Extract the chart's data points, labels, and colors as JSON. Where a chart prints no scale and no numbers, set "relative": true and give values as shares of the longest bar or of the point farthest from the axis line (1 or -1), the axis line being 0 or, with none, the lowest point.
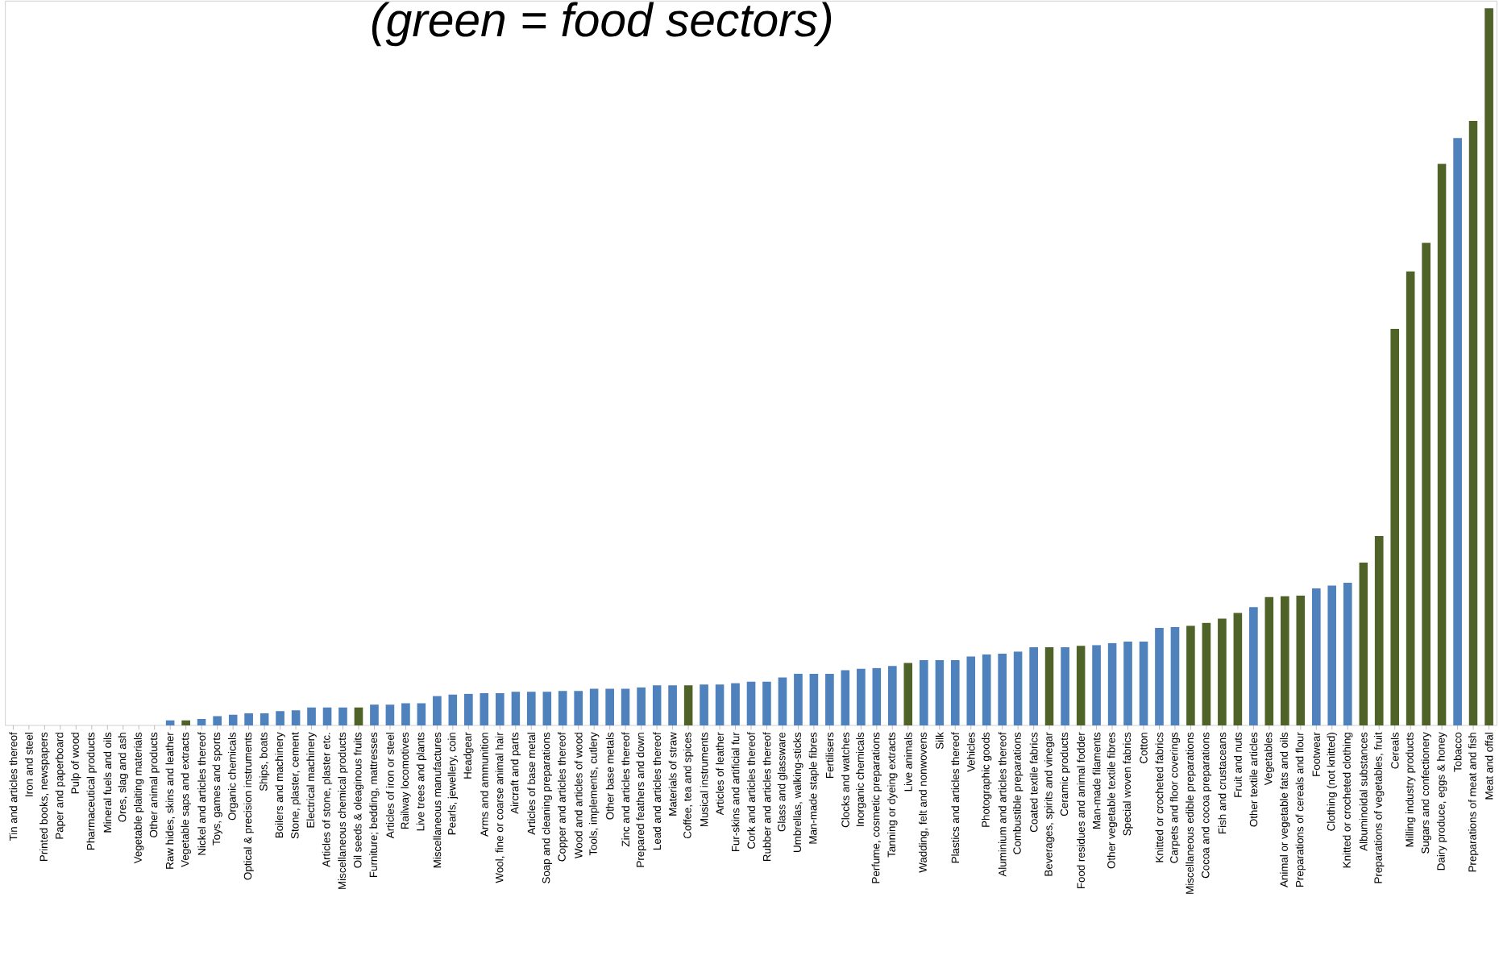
{
  "chart_data": {
    "type": "bar",
    "relative": true,
    "title": "*(green = food sectors)*",
    "categories": [
      "Tin and articles thereof",
      "Iron and steel",
      "Printed books, newspapers",
      "Paper and paperboard",
      "Pulp of wood",
      "Pharmaceutical products",
      "Mineral fuels and oils",
      "Ores, slag and ash",
      "Vegetable plaiting materials",
      "Other animal products",
      "Raw hides, skins and leather",
      "Vegetable saps and extracts",
      "Nickel and articles thereof",
      "Toys, games and sports",
      "Organic chemicals",
      "Optical & precision instruments",
      "Ships, boats",
      "Boilers and machinery",
      "Stone, plaster, cement",
      "Electrical machinery",
      "Articles of stone, plaster etc.",
      "Miscellaneous chemical products",
      "Oil seeds & oleaginous fruits",
      "Furniture; bedding, mattresses",
      "Articles of iron or steel",
      "Railway locomotives",
      "Live trees and plants",
      "Miscellaneous manufactures",
      "Pearls, jewellery, coin",
      "Headgear",
      "Arms and ammunition",
      "Wool, fine or coarse animal hair",
      "Aircraft and parts",
      "Articles of base metal",
      "Soap and cleaning preparations",
      "Copper and articles thereof",
      "Wood and articles of wood",
      "Tools, implements, cutlery",
      "Other base metals",
      "Zinc and articles thereof",
      "Prepared feathers and down",
      "Lead and articles thereof",
      "Materials of straw",
      "Coffee, tea and spices",
      "Musical instruments",
      "Articles of leather",
      "Fur-skins and artificial fur",
      "Cork and articles thereof",
      "Rubber and articles thereof",
      "Glass and glassware",
      "Umbrellas, walking-sticks",
      "Man-made staple fibres",
      "Fertilisers",
      "Clocks and watches",
      "Inorganic chemicals",
      "Perfume, cosmetic preparations",
      "Tanning or dyeing extracts",
      "Live animals",
      "Wadding, felt and nonwovens",
      "Silk",
      "Plastics and articles thereof",
      "Vehicles",
      "Photographic goods",
      "Aluminium and articles thereof",
      "Combustible preparations",
      "Coated textile fabrics",
      "Beverages, spirits and vinegar",
      "Ceramic products",
      "Food residues and animal fodder",
      "Man-made filaments",
      "Other vegetable textile fibres",
      "Special woven fabrics",
      "Cotton",
      "Knitted or crocheted fabrics",
      "Carpets and floor coverings",
      "Miscellaneous edible preparations",
      "Cocoa and cocoa preparations",
      "Fish and crustaceans",
      "Fruit and nuts",
      "Other textile articles",
      "Vegetables",
      "Animal or vegetable fats and oils",
      "Preparations of cereals and flour",
      "Footwear",
      "Clothing (not knitted)",
      "Knitted or crocheted clothing",
      "Albuminoidal substances",
      "Preparations of vegetables, fruit",
      "Cereals",
      "Milling industry products",
      "Sugars and confectionery",
      "Dairy produce, eggs & honey",
      "Tobacco",
      "Preparations of meat and fish",
      "Meat and offal"
    ],
    "values": [
      0,
      0,
      0,
      0,
      0,
      0,
      0,
      0,
      0,
      0,
      0.007,
      0.007,
      0.009,
      0.013,
      0.015,
      0.017,
      0.017,
      0.02,
      0.021,
      0.025,
      0.025,
      0.025,
      0.025,
      0.029,
      0.029,
      0.031,
      0.031,
      0.041,
      0.043,
      0.044,
      0.045,
      0.045,
      0.047,
      0.047,
      0.047,
      0.048,
      0.048,
      0.051,
      0.051,
      0.051,
      0.053,
      0.056,
      0.056,
      0.056,
      0.057,
      0.057,
      0.059,
      0.061,
      0.061,
      0.067,
      0.072,
      0.072,
      0.072,
      0.077,
      0.079,
      0.08,
      0.083,
      0.087,
      0.091,
      0.091,
      0.091,
      0.096,
      0.099,
      0.1,
      0.103,
      0.109,
      0.109,
      0.109,
      0.111,
      0.112,
      0.115,
      0.117,
      0.117,
      0.136,
      0.137,
      0.139,
      0.143,
      0.149,
      0.157,
      0.165,
      0.179,
      0.18,
      0.181,
      0.191,
      0.195,
      0.199,
      0.227,
      0.264,
      0.553,
      0.633,
      0.673,
      0.783,
      0.819,
      0.843,
      1
    ],
    "colors": [
      "#4f81bd",
      "#4f81bd",
      "#4f81bd",
      "#4f81bd",
      "#4f81bd",
      "#4f81bd",
      "#4f81bd",
      "#4f81bd",
      "#4f81bd",
      "#4f81bd",
      "#4f81bd",
      "#4f6228",
      "#4f81bd",
      "#4f81bd",
      "#4f81bd",
      "#4f81bd",
      "#4f81bd",
      "#4f81bd",
      "#4f81bd",
      "#4f81bd",
      "#4f81bd",
      "#4f81bd",
      "#4f6228",
      "#4f81bd",
      "#4f81bd",
      "#4f81bd",
      "#4f81bd",
      "#4f81bd",
      "#4f81bd",
      "#4f81bd",
      "#4f81bd",
      "#4f81bd",
      "#4f81bd",
      "#4f81bd",
      "#4f81bd",
      "#4f81bd",
      "#4f81bd",
      "#4f81bd",
      "#4f81bd",
      "#4f81bd",
      "#4f81bd",
      "#4f81bd",
      "#4f81bd",
      "#4f6228",
      "#4f81bd",
      "#4f81bd",
      "#4f81bd",
      "#4f81bd",
      "#4f81bd",
      "#4f81bd",
      "#4f81bd",
      "#4f81bd",
      "#4f81bd",
      "#4f81bd",
      "#4f81bd",
      "#4f81bd",
      "#4f81bd",
      "#4f6228",
      "#4f81bd",
      "#4f81bd",
      "#4f81bd",
      "#4f81bd",
      "#4f81bd",
      "#4f81bd",
      "#4f81bd",
      "#4f81bd",
      "#4f6228",
      "#4f81bd",
      "#4f6228",
      "#4f81bd",
      "#4f81bd",
      "#4f81bd",
      "#4f81bd",
      "#4f81bd",
      "#4f81bd",
      "#4f6228",
      "#4f6228",
      "#4f6228",
      "#4f6228",
      "#4f81bd",
      "#4f6228",
      "#4f6228",
      "#4f6228",
      "#4f81bd",
      "#4f81bd",
      "#4f81bd",
      "#4f6228",
      "#4f6228",
      "#4f6228",
      "#4f6228",
      "#4f6228",
      "#4f6228",
      "#4f81bd",
      "#4f6228",
      "#4f6228"
    ]
  }
}
